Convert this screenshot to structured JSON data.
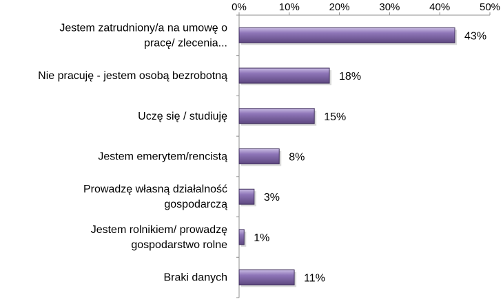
{
  "chart_data": {
    "type": "bar",
    "orientation": "horizontal",
    "title": "",
    "xlabel": "",
    "ylabel": "",
    "categories": [
      "Jestem zatrudniony/a na umowę o pracę/ zlecenia...",
      "Nie pracuję - jestem osobą bezrobotną",
      "Uczę się / studiuję",
      "Jestem emerytem/rencistą",
      "Prowadzę własną działalność gospodarczą",
      "Jestem rolnikiem/ prowadzę gospodarstwo rolne",
      "Braki danych"
    ],
    "category_lines": [
      [
        "Jestem zatrudniony/a na umowę o",
        "pracę/ zlecenia..."
      ],
      [
        "Nie pracuję - jestem osobą bezrobotną"
      ],
      [
        "Uczę się / studiuję"
      ],
      [
        "Jestem emerytem/rencistą"
      ],
      [
        "Prowadzę własną działalność",
        "gospodarczą"
      ],
      [
        "Jestem rolnikiem/ prowadzę",
        "gospodarstwo rolne"
      ],
      [
        "Braki danych"
      ]
    ],
    "values": [
      43,
      18,
      15,
      8,
      3,
      1,
      11
    ],
    "value_labels": [
      "43%",
      "18%",
      "15%",
      "8%",
      "3%",
      "1%",
      "11%"
    ],
    "xlim": [
      0,
      50
    ],
    "xticks": [
      0,
      10,
      20,
      30,
      40,
      50
    ],
    "xtick_labels": [
      "0%",
      "10%",
      "20%",
      "30%",
      "40%",
      "50%"
    ],
    "axis_position": "top",
    "grid": false,
    "legend": "none",
    "colors": {
      "bar_fill_light": "#b3a2d6",
      "bar_fill_main": "#8064a2",
      "bar_fill_dark": "#5e4880",
      "bar_edge": "#3f2f5c",
      "axis": "#8c8c8c"
    }
  }
}
